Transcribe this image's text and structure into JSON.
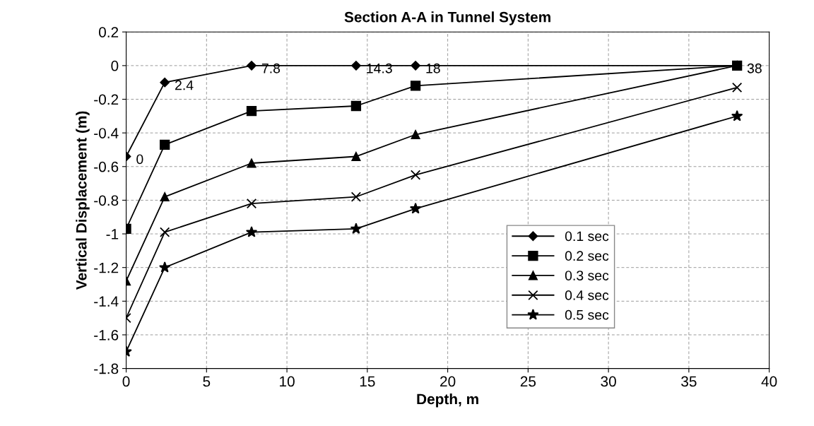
{
  "chart_data": {
    "type": "line",
    "title": "Section A-A in Tunnel System",
    "xlabel": "Depth, m",
    "ylabel": "Vertical Displacement (m)",
    "x": [
      0,
      2.4,
      7.8,
      14.3,
      18,
      38
    ],
    "series": [
      {
        "name": "0.1 sec",
        "color": "#000000",
        "marker": "diamond",
        "values": [
          -0.54,
          -0.1,
          0,
          0,
          0,
          0
        ]
      },
      {
        "name": "0.2 sec",
        "color": "#000000",
        "marker": "square",
        "values": [
          -0.97,
          -0.47,
          -0.27,
          -0.24,
          -0.12,
          0
        ]
      },
      {
        "name": "0.3 sec",
        "color": "#000000",
        "marker": "triangle",
        "values": [
          -1.28,
          -0.78,
          -0.58,
          -0.54,
          -0.41,
          0
        ]
      },
      {
        "name": "0.4 sec",
        "color": "#000000",
        "marker": "cross",
        "values": [
          -1.5,
          -0.99,
          -0.82,
          -0.78,
          -0.65,
          -0.13
        ]
      },
      {
        "name": "0.5 sec",
        "color": "#000000",
        "marker": "star",
        "values": [
          -1.7,
          -1.2,
          -0.99,
          -0.97,
          -0.85,
          -0.3
        ]
      }
    ],
    "annotations": [
      {
        "text": "0",
        "x": 0,
        "y": -0.54
      },
      {
        "text": "2.4",
        "x": 2.4,
        "y": -0.1
      },
      {
        "text": "7.8",
        "x": 7.8,
        "y": 0
      },
      {
        "text": "14.3",
        "x": 14.3,
        "y": 0
      },
      {
        "text": "18",
        "x": 18,
        "y": 0
      },
      {
        "text": "38",
        "x": 38,
        "y": 0
      }
    ],
    "xlim": [
      0,
      40
    ],
    "xticks": [
      0,
      5,
      10,
      15,
      20,
      25,
      30,
      35,
      40
    ],
    "ylim": [
      -1.8,
      0.2
    ],
    "yticks": [
      0.2,
      0,
      -0.2,
      -0.4,
      -0.6,
      -0.8,
      -1,
      -1.2,
      -1.4,
      -1.6,
      -1.8
    ],
    "grid": true,
    "legend": "bottom right",
    "line_style": "solid"
  }
}
